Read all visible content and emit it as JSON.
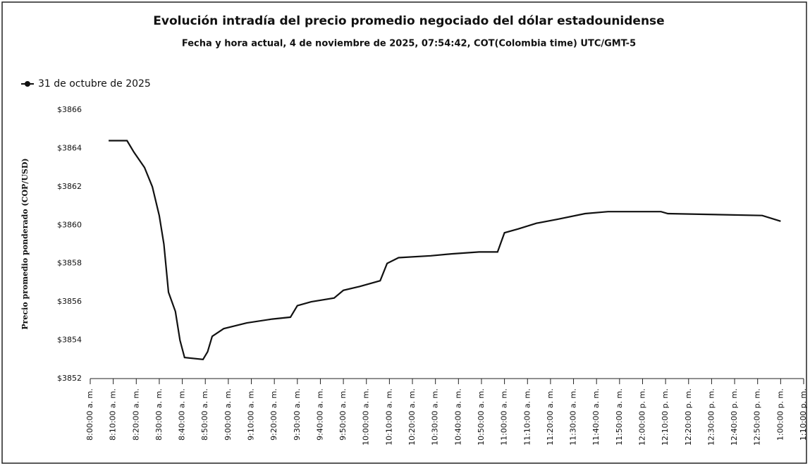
{
  "chart_data": {
    "type": "line",
    "title": "Evolución intradía del precio promedio negociado del dólar estadounidense",
    "subtitle": "Fecha y hora actual, 4 de noviembre de 2025, 07:54:42, COT(Colombia time) UTC/GMT-5",
    "y_label": "Precio promedio ponderado (COP/USD)",
    "x": [
      488,
      496,
      499,
      503.6,
      507,
      510,
      512,
      514,
      517,
      519,
      521,
      529,
      531,
      533,
      538,
      548,
      559,
      567,
      570,
      576,
      586,
      590,
      597,
      606,
      609,
      614,
      628,
      637,
      649,
      657,
      660,
      666,
      674,
      683,
      695,
      705,
      728,
      731,
      772,
      780
    ],
    "series": [
      {
        "name": "31 de octubre de 2025",
        "color": "#111111",
        "values": [
          3864.4,
          3864.4,
          3863.8,
          3863.0,
          3862.0,
          3860.5,
          3859.0,
          3856.5,
          3855.5,
          3854.0,
          3853.1,
          3853.0,
          3853.4,
          3854.2,
          3854.6,
          3854.9,
          3855.1,
          3855.2,
          3855.8,
          3856.0,
          3856.2,
          3856.6,
          3856.8,
          3857.1,
          3858.0,
          3858.3,
          3858.4,
          3858.5,
          3858.6,
          3858.6,
          3859.6,
          3859.8,
          3860.1,
          3860.3,
          3860.6,
          3860.7,
          3860.7,
          3860.6,
          3860.5,
          3860.2
        ]
      }
    ],
    "xlim": [
      480,
      790
    ],
    "xticks": [
      {
        "value": 480,
        "label": "8:00:00 a. m."
      },
      {
        "value": 490,
        "label": "8:10:00 a. m."
      },
      {
        "value": 500,
        "label": "8:20:00 a. m."
      },
      {
        "value": 510,
        "label": "8:30:00 a. m."
      },
      {
        "value": 520,
        "label": "8:40:00 a. m."
      },
      {
        "value": 530,
        "label": "8:50:00 a. m."
      },
      {
        "value": 540,
        "label": "9:00:00 a. m."
      },
      {
        "value": 550,
        "label": "9:10:00 a. m."
      },
      {
        "value": 560,
        "label": "9:20:00 a. m."
      },
      {
        "value": 570,
        "label": "9:30:00 a. m."
      },
      {
        "value": 580,
        "label": "9:40:00 a. m."
      },
      {
        "value": 590,
        "label": "9:50:00 a. m."
      },
      {
        "value": 600,
        "label": "10:00:00 a. m."
      },
      {
        "value": 610,
        "label": "10:10:00 a. m."
      },
      {
        "value": 620,
        "label": "10:20:00 a. m."
      },
      {
        "value": 630,
        "label": "10:30:00 a. m."
      },
      {
        "value": 640,
        "label": "10:40:00 a. m."
      },
      {
        "value": 650,
        "label": "10:50:00 a. m."
      },
      {
        "value": 660,
        "label": "11:00:00 a. m."
      },
      {
        "value": 670,
        "label": "11:10:00 a. m."
      },
      {
        "value": 680,
        "label": "11:20:00 a. m."
      },
      {
        "value": 690,
        "label": "11:30:00 a. m."
      },
      {
        "value": 700,
        "label": "11:40:00 a. m."
      },
      {
        "value": 710,
        "label": "11:50:00 a. m."
      },
      {
        "value": 720,
        "label": "12:00:00 p. m."
      },
      {
        "value": 730,
        "label": "12:10:00 p. m."
      },
      {
        "value": 740,
        "label": "12:20:00 p. m."
      },
      {
        "value": 750,
        "label": "12:30:00 p. m."
      },
      {
        "value": 760,
        "label": "12:40:00 p. m."
      },
      {
        "value": 770,
        "label": "12:50:00 p. m."
      },
      {
        "value": 780,
        "label": "1:00:00 p. m."
      },
      {
        "value": 790,
        "label": "1:10:00 p. m."
      }
    ],
    "ylim": [
      3852,
      3866
    ],
    "yticks": [
      {
        "value": 3852,
        "label": "$3852"
      },
      {
        "value": 3854,
        "label": "$3854"
      },
      {
        "value": 3856,
        "label": "$3856"
      },
      {
        "value": 3858,
        "label": "$3858"
      },
      {
        "value": 3860,
        "label": "$3860"
      },
      {
        "value": 3862,
        "label": "$3862"
      },
      {
        "value": 3864,
        "label": "$3864"
      },
      {
        "value": 3866,
        "label": "$3866"
      }
    ],
    "legend": "top-left",
    "grid": false
  }
}
